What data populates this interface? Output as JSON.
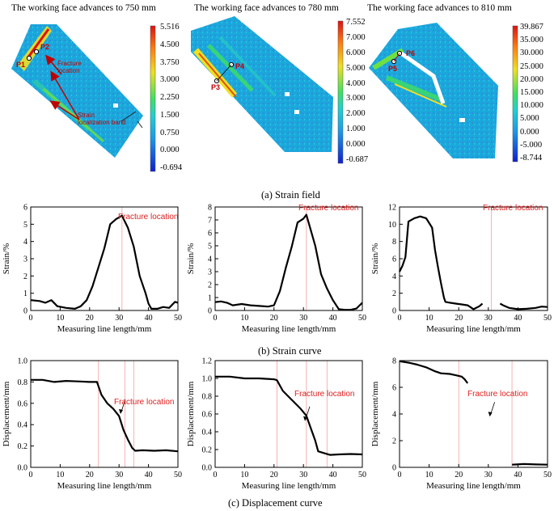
{
  "strain_field": {
    "caption": "(a) Strain field",
    "panels": [
      {
        "title": "The working face advances to 750 mm",
        "colorbar": [
          "5.516",
          "4.500",
          "3.750",
          "3.000",
          "2.250",
          "1.500",
          "0.750",
          "0.000",
          "-0.694"
        ],
        "labels": [
          "P1",
          "P2"
        ],
        "annotations": [
          "Fracture location",
          "Strain localization band"
        ]
      },
      {
        "title": "The working face advances to 780 mm",
        "colorbar": [
          "7.552",
          "7.000",
          "6.000",
          "5.000",
          "4.000",
          "3.000",
          "2.000",
          "1.000",
          "0.000",
          "-0.687"
        ],
        "labels": [
          "P3",
          "P4"
        ]
      },
      {
        "title": "The working face advances to 810 mm",
        "colorbar": [
          "39.867",
          "35.000",
          "30.000",
          "25.000",
          "20.000",
          "15.000",
          "10.000",
          "5.000",
          "0.000",
          "-5.000",
          "-8.744"
        ],
        "labels": [
          "P5",
          "P6"
        ]
      }
    ],
    "colors": {
      "field_base": "#1aa8dc",
      "field_band": "#f0e020",
      "hot": "#e01010",
      "arrow": "#c00000"
    }
  },
  "strain_curve": {
    "caption": "(b) Strain curve",
    "annotation": "Fracture location"
  },
  "displacement_curve": {
    "caption": "(c) Displacement curve",
    "annotation": "Fracture location"
  },
  "chart_data": [
    {
      "type": "line",
      "id": "strain-750",
      "xlabel": "Measuring line length/mm",
      "ylabel": "Strain/%",
      "xlim": [
        0,
        50
      ],
      "ylim": [
        0,
        6
      ],
      "xticks": [
        0,
        10,
        20,
        30,
        40,
        50
      ],
      "yticks": [
        0,
        1,
        2,
        3,
        4,
        5,
        6
      ],
      "fracture_x": 31,
      "series": [
        {
          "name": "strain",
          "segments": [
            [
              [
                0,
                0.6
              ],
              [
                3,
                0.55
              ],
              [
                5,
                0.45
              ],
              [
                7,
                0.6
              ],
              [
                9,
                0.25
              ],
              [
                12,
                0.15
              ],
              [
                15,
                0.1
              ],
              [
                17,
                0.25
              ],
              [
                19,
                0.6
              ],
              [
                21,
                1.4
              ],
              [
                23,
                2.5
              ],
              [
                25,
                3.6
              ],
              [
                27,
                5.0
              ],
              [
                29,
                5.3
              ],
              [
                31,
                5.5
              ],
              [
                33,
                4.8
              ],
              [
                35,
                3.7
              ],
              [
                37,
                2.0
              ],
              [
                39,
                1.0
              ],
              [
                40,
                0.4
              ],
              [
                41,
                0.1
              ],
              [
                43,
                0.1
              ],
              [
                45,
                0.2
              ],
              [
                47,
                0.15
              ],
              [
                49,
                0.5
              ],
              [
                50,
                0.45
              ]
            ]
          ]
        }
      ]
    },
    {
      "type": "line",
      "id": "strain-780",
      "xlabel": "Measuring line length/mm",
      "ylabel": "Strain/%",
      "xlim": [
        0,
        50
      ],
      "ylim": [
        0,
        8
      ],
      "xticks": [
        0,
        10,
        20,
        30,
        40,
        50
      ],
      "yticks": [
        0,
        1,
        2,
        3,
        4,
        5,
        6,
        7,
        8
      ],
      "fracture_x": 31,
      "series": [
        {
          "name": "strain",
          "segments": [
            [
              [
                0,
                0.65
              ],
              [
                2,
                0.7
              ],
              [
                4,
                0.6
              ],
              [
                6,
                0.4
              ],
              [
                9,
                0.5
              ],
              [
                12,
                0.4
              ],
              [
                15,
                0.35
              ],
              [
                18,
                0.3
              ],
              [
                20,
                0.4
              ],
              [
                22,
                1.5
              ],
              [
                24,
                3.3
              ],
              [
                26,
                4.9
              ],
              [
                28,
                6.8
              ],
              [
                30,
                7.1
              ],
              [
                31,
                7.4
              ],
              [
                32,
                6.6
              ],
              [
                34,
                5.0
              ],
              [
                36,
                2.8
              ],
              [
                38,
                1.7
              ],
              [
                40,
                0.8
              ],
              [
                42,
                0.1
              ],
              [
                44,
                0.05
              ],
              [
                46,
                0.05
              ],
              [
                48,
                0.15
              ],
              [
                50,
                0.6
              ]
            ]
          ]
        }
      ]
    },
    {
      "type": "line",
      "id": "strain-810",
      "xlabel": "Measuring line length/mm",
      "ylabel": "Strain/%",
      "xlim": [
        0,
        50
      ],
      "ylim": [
        0,
        12
      ],
      "xticks": [
        0,
        10,
        20,
        30,
        40,
        50
      ],
      "yticks": [
        0,
        2,
        4,
        6,
        8,
        10,
        12
      ],
      "fracture_x": 31,
      "series": [
        {
          "name": "strain",
          "segments": [
            [
              [
                0,
                4.5
              ],
              [
                1,
                5.2
              ],
              [
                2,
                6.2
              ],
              [
                3,
                10.3
              ],
              [
                5,
                10.7
              ],
              [
                7,
                10.9
              ],
              [
                9,
                10.7
              ],
              [
                11,
                9.6
              ],
              [
                12,
                7.0
              ],
              [
                13,
                5.0
              ],
              [
                14,
                3.2
              ],
              [
                15,
                1.5
              ],
              [
                15.5,
                1.0
              ],
              [
                17,
                0.9
              ],
              [
                19,
                0.8
              ],
              [
                21,
                0.7
              ],
              [
                23,
                0.6
              ],
              [
                25,
                0.15
              ],
              [
                27,
                0.5
              ],
              [
                28,
                0.8
              ]
            ],
            [
              [
                34,
                0.8
              ],
              [
                35,
                0.6
              ],
              [
                37,
                0.3
              ],
              [
                40,
                0.15
              ],
              [
                43,
                0.2
              ],
              [
                46,
                0.3
              ],
              [
                48,
                0.45
              ],
              [
                50,
                0.4
              ]
            ]
          ]
        }
      ]
    },
    {
      "type": "line",
      "id": "disp-750",
      "xlabel": "Measuring line length/mm",
      "ylabel": "Displacement/mm",
      "xlim": [
        0,
        50
      ],
      "ylim": [
        0.0,
        1.0
      ],
      "xticks": [
        0,
        10,
        20,
        30,
        40,
        50
      ],
      "yticks": [
        0.0,
        0.2,
        0.4,
        0.6,
        0.8,
        1.0
      ],
      "ytick_labels": [
        "0.0",
        "0.2",
        "0.4",
        "0.6",
        "0.8",
        "1.0"
      ],
      "guides_x": [
        23,
        32,
        35
      ],
      "arrow_x": 30.5,
      "arrow_y": 0.5,
      "series": [
        {
          "name": "displacement",
          "segments": [
            [
              [
                0,
                0.82
              ],
              [
                4,
                0.82
              ],
              [
                8,
                0.8
              ],
              [
                12,
                0.81
              ],
              [
                16,
                0.805
              ],
              [
                20,
                0.8
              ],
              [
                22.5,
                0.8
              ],
              [
                24,
                0.68
              ],
              [
                26,
                0.6
              ],
              [
                28,
                0.55
              ],
              [
                30,
                0.48
              ],
              [
                31.5,
                0.35
              ],
              [
                33,
                0.26
              ],
              [
                34.5,
                0.18
              ],
              [
                35.5,
                0.155
              ],
              [
                38,
                0.16
              ],
              [
                42,
                0.155
              ],
              [
                46,
                0.16
              ],
              [
                50,
                0.15
              ]
            ]
          ]
        }
      ]
    },
    {
      "type": "line",
      "id": "disp-780",
      "xlabel": "Measuring line length/mm",
      "ylabel": "Displacement/mm",
      "xlim": [
        0,
        50
      ],
      "ylim": [
        0.0,
        1.2
      ],
      "xticks": [
        0,
        10,
        20,
        30,
        40,
        50
      ],
      "yticks": [
        0.0,
        0.2,
        0.4,
        0.6,
        0.8,
        1.0,
        1.2
      ],
      "ytick_labels": [
        "0.0",
        "0.2",
        "0.4",
        "0.6",
        "0.8",
        "1.0",
        "1.2"
      ],
      "guides_x": [
        21,
        31,
        38
      ],
      "arrow_x": 30.5,
      "arrow_y": 0.52,
      "series": [
        {
          "name": "displacement",
          "segments": [
            [
              [
                0,
                1.02
              ],
              [
                5,
                1.02
              ],
              [
                10,
                1.0
              ],
              [
                15,
                1.0
              ],
              [
                20,
                0.99
              ],
              [
                21,
                0.98
              ],
              [
                23,
                0.86
              ],
              [
                26,
                0.76
              ],
              [
                29,
                0.66
              ],
              [
                31,
                0.58
              ],
              [
                32.5,
                0.44
              ],
              [
                34,
                0.3
              ],
              [
                35,
                0.18
              ],
              [
                37,
                0.16
              ],
              [
                39,
                0.14
              ],
              [
                42,
                0.145
              ],
              [
                46,
                0.15
              ],
              [
                50,
                0.145
              ]
            ]
          ]
        }
      ]
    },
    {
      "type": "line",
      "id": "disp-810",
      "xlabel": "Measuring line length/mm",
      "ylabel": "Displacement/mm",
      "xlim": [
        0,
        50
      ],
      "ylim": [
        0,
        8
      ],
      "xticks": [
        0,
        10,
        20,
        30,
        40,
        50
      ],
      "yticks": [
        0,
        2,
        4,
        6,
        8
      ],
      "guides_x": [
        20,
        38
      ],
      "arrow_x": 30.5,
      "arrow_y": 3.8,
      "series": [
        {
          "name": "displacement",
          "segments": [
            [
              [
                0,
                7.95
              ],
              [
                3,
                7.85
              ],
              [
                6,
                7.7
              ],
              [
                9,
                7.5
              ],
              [
                12,
                7.2
              ],
              [
                14,
                7.05
              ],
              [
                17,
                7.0
              ],
              [
                19,
                6.9
              ],
              [
                21,
                6.8
              ],
              [
                22,
                6.6
              ],
              [
                23,
                6.3
              ]
            ],
            [
              [
                38,
                0.2
              ],
              [
                42,
                0.25
              ],
              [
                46,
                0.22
              ],
              [
                50,
                0.2
              ]
            ]
          ]
        }
      ]
    }
  ]
}
